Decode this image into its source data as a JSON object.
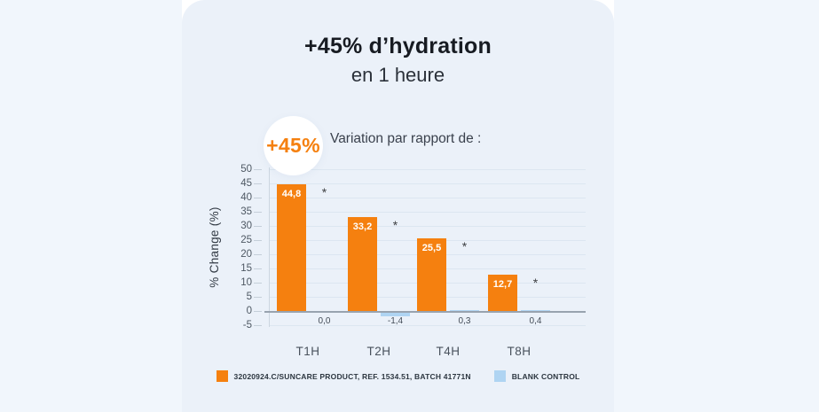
{
  "page": {
    "background_color": "#f1f6fc",
    "panel_color": "#ebf1f9",
    "accent_color": "#F5800F",
    "blank_color": "#AFD4F2"
  },
  "header": {
    "title": "+45% d’hydration",
    "subtitle": "en 1 heure"
  },
  "chart_header": {
    "badge_label": "+45%",
    "caption": "Variation par rapport de :"
  },
  "chart_data": {
    "type": "bar",
    "title": "+45% d’hydration en 1 heure",
    "caption": "Variation par rapport de :",
    "categories": [
      "T1H",
      "T2H",
      "T4H",
      "T8H"
    ],
    "series": [
      {
        "name": "32020924.C/SUNCARE PRODUCT, REF. 1534.51, BATCH 41771N",
        "color": "#F5800F",
        "values": [
          44.8,
          33.2,
          25.5,
          12.7
        ],
        "value_labels": [
          "44,8",
          "33,2",
          "25,5",
          "12,7"
        ]
      },
      {
        "name": "BLANK CONTROL",
        "color": "#AFD4F2",
        "values": [
          0.0,
          -1.4,
          0.3,
          0.4
        ],
        "value_labels": [
          "0,0",
          "-1,4",
          "0,3",
          "0,4"
        ]
      }
    ],
    "significance_marker": "*",
    "xlabel": "",
    "ylabel": "% Change (%)",
    "yticks": [
      50,
      45,
      40,
      35,
      30,
      25,
      20,
      15,
      10,
      5,
      0,
      -5
    ],
    "ylim": [
      -5,
      50
    ],
    "grid": true,
    "legend_position": "bottom"
  }
}
